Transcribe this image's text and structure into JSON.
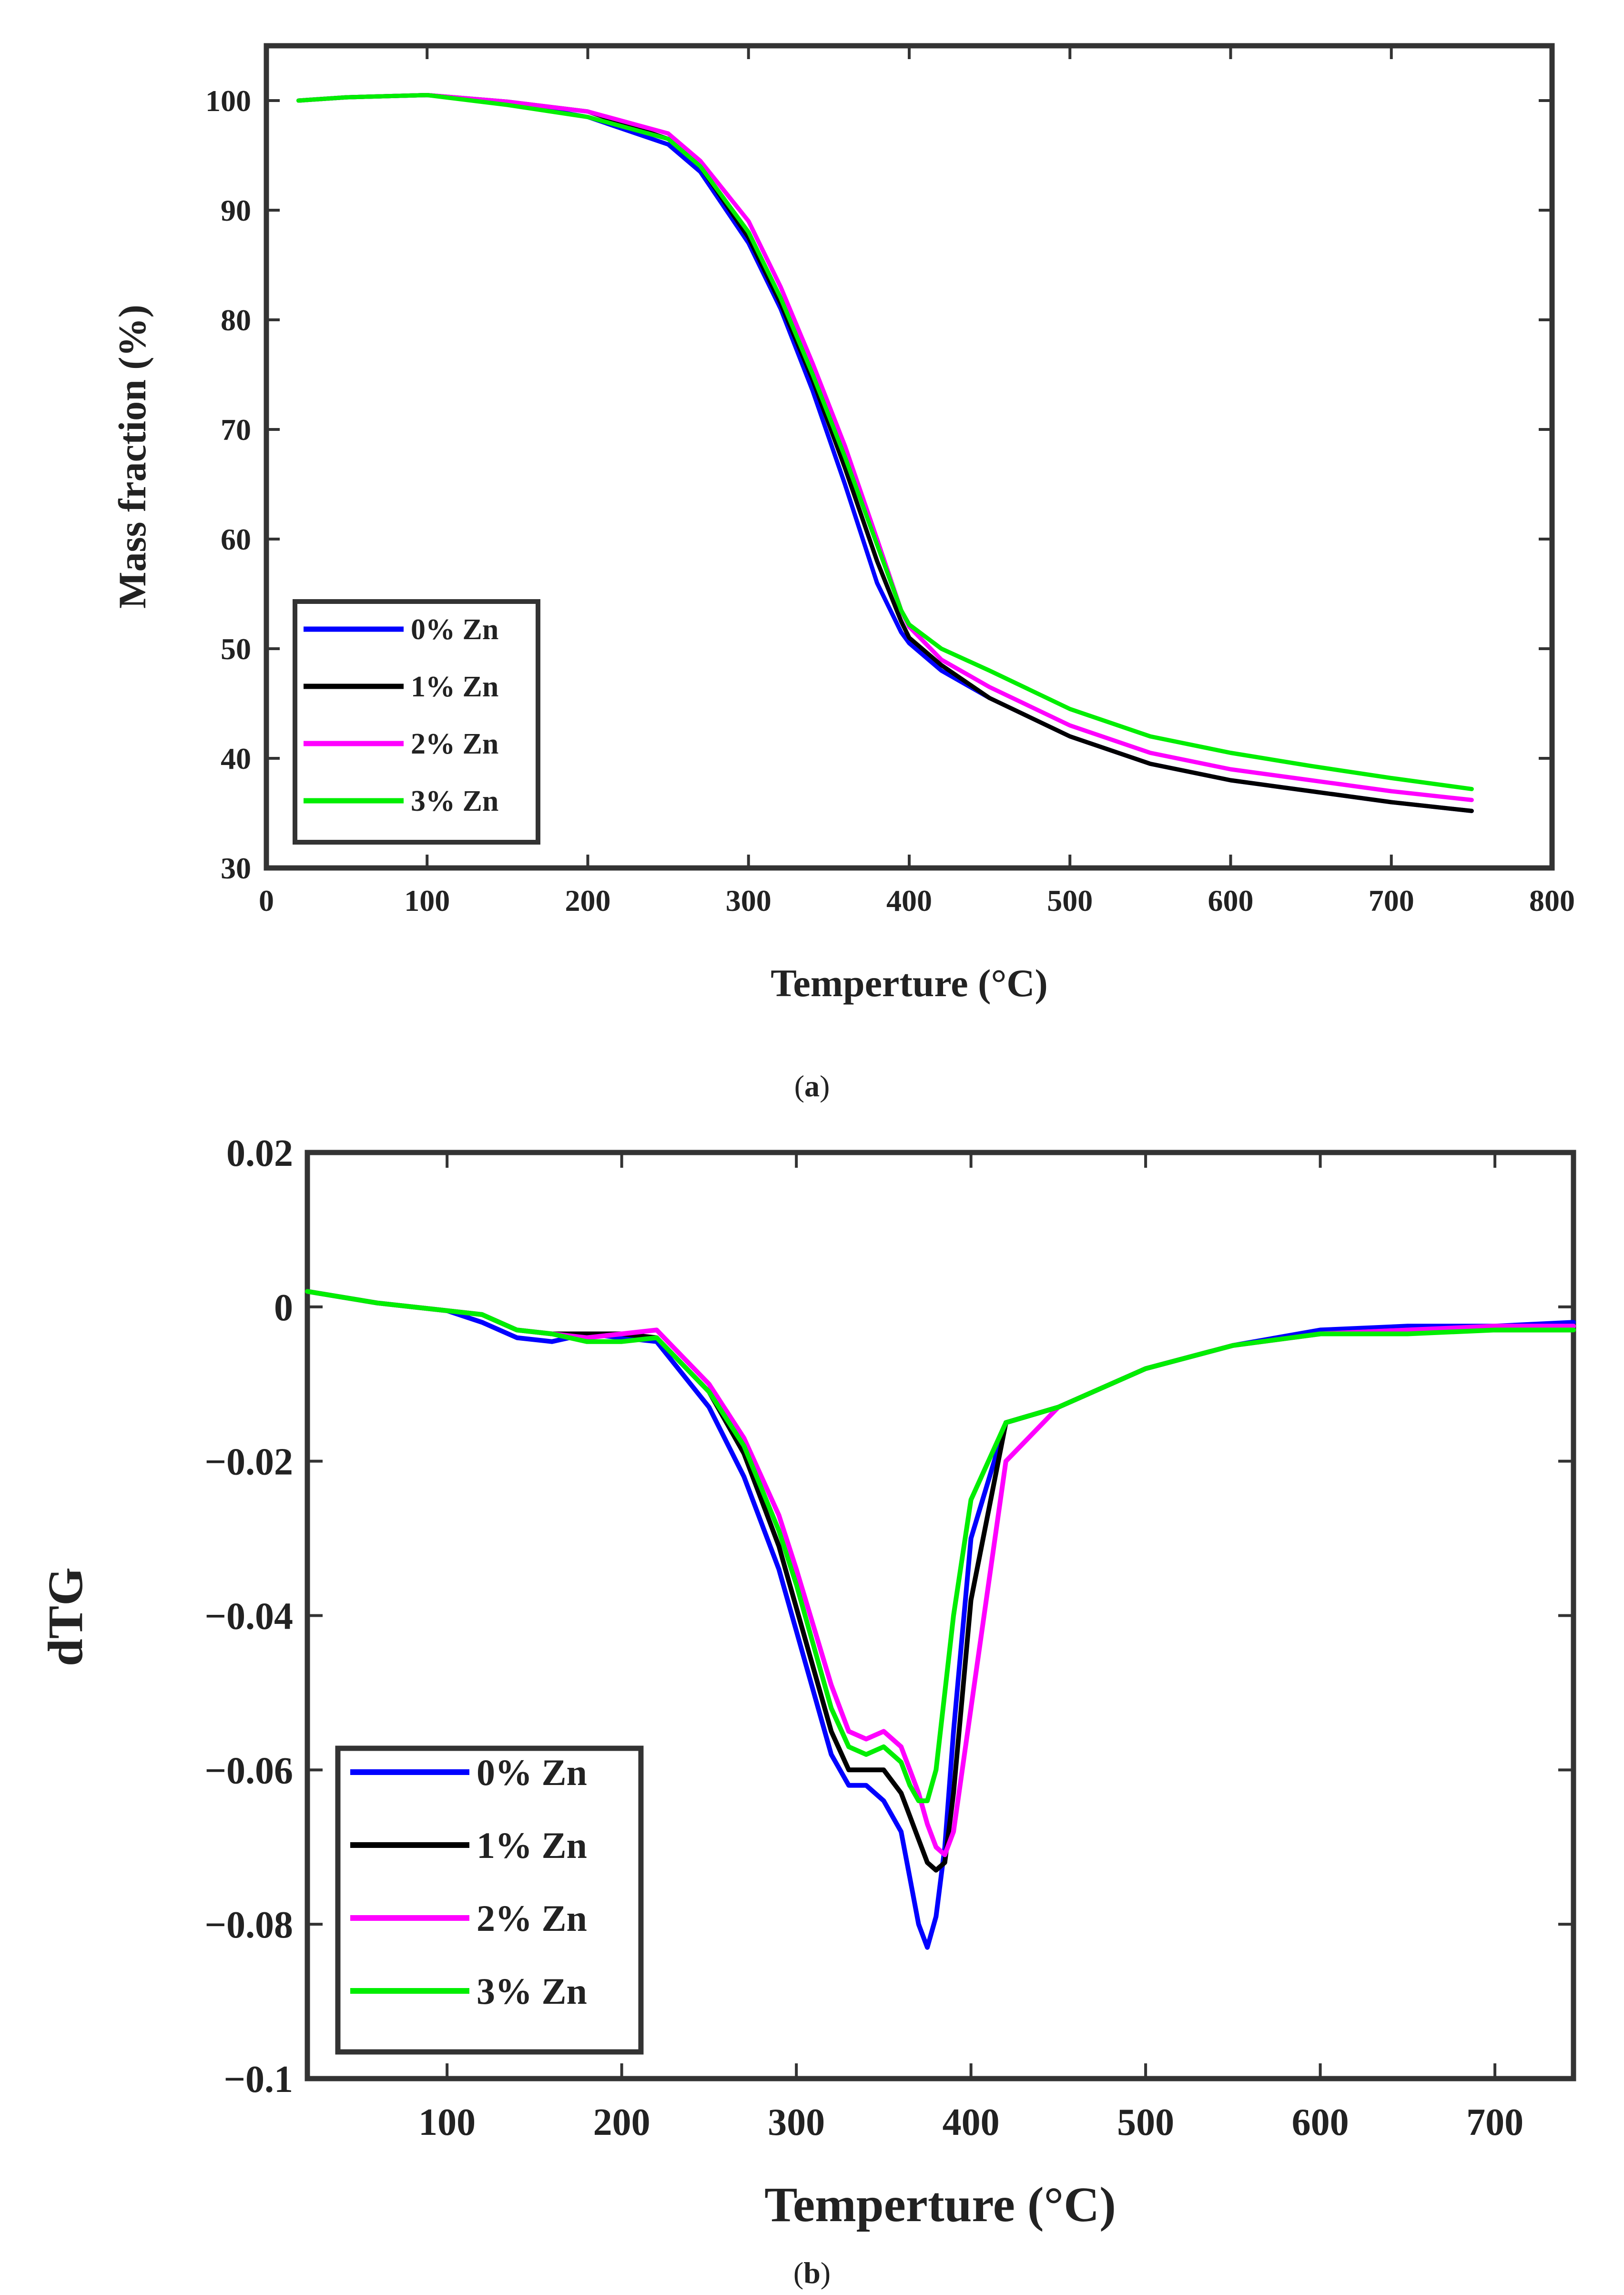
{
  "chart_data": [
    {
      "type": "line",
      "panel_label": "a",
      "xlabel": "Temperture (°C)",
      "ylabel": "Mass fraction (%)",
      "xlim": [
        0,
        800
      ],
      "ylim": [
        30,
        105
      ],
      "xticks": [
        0,
        100,
        200,
        300,
        400,
        500,
        600,
        700,
        800
      ],
      "yticks": [
        30,
        40,
        50,
        60,
        70,
        80,
        90,
        100
      ],
      "legend_position": "bottom-left",
      "series": [
        {
          "name": "0% Zn",
          "color": "#0000ff",
          "x": [
            20,
            50,
            100,
            150,
            200,
            250,
            270,
            300,
            320,
            340,
            360,
            380,
            395,
            400,
            420,
            450,
            500,
            550,
            600,
            650,
            700,
            750
          ],
          "y": [
            100,
            100.3,
            100.5,
            99.8,
            98.5,
            96,
            93.5,
            87,
            81,
            73.5,
            65,
            56,
            51.5,
            50.5,
            48,
            45.5,
            42,
            39.5,
            38,
            37,
            36,
            35.2
          ]
        },
        {
          "name": "1% Zn",
          "color": "#000000",
          "x": [
            20,
            50,
            100,
            150,
            200,
            250,
            270,
            300,
            320,
            340,
            360,
            380,
            395,
            400,
            420,
            450,
            500,
            550,
            600,
            650,
            700,
            750
          ],
          "y": [
            100,
            100.3,
            100.5,
            99.9,
            99,
            96.5,
            94,
            87.5,
            81.5,
            74.5,
            66.5,
            58,
            52.5,
            51,
            48.5,
            45.5,
            42,
            39.5,
            38,
            37,
            36,
            35.2
          ]
        },
        {
          "name": "2% Zn",
          "color": "#ff00ff",
          "x": [
            20,
            50,
            100,
            150,
            200,
            250,
            270,
            300,
            320,
            340,
            360,
            380,
            395,
            400,
            420,
            450,
            500,
            550,
            600,
            650,
            700,
            750
          ],
          "y": [
            100,
            100.3,
            100.5,
            99.9,
            99,
            97,
            94.5,
            89,
            83,
            76,
            68.5,
            60,
            53.5,
            52,
            49,
            46.5,
            43,
            40.5,
            39,
            38,
            37,
            36.2
          ]
        },
        {
          "name": "3% Zn",
          "color": "#00ee00",
          "x": [
            20,
            50,
            100,
            150,
            200,
            250,
            270,
            300,
            320,
            340,
            360,
            380,
            395,
            400,
            420,
            450,
            500,
            550,
            600,
            650,
            700,
            750
          ],
          "y": [
            100,
            100.3,
            100.5,
            99.6,
            98.5,
            96.5,
            94,
            88,
            82,
            75,
            67.5,
            59.5,
            53.5,
            52.2,
            50,
            48,
            44.5,
            42,
            40.5,
            39.3,
            38.2,
            37.2
          ]
        }
      ]
    },
    {
      "type": "line",
      "panel_label": "b",
      "xlabel": "Temperture (°C)",
      "ylabel": "dTG",
      "xlim": [
        20,
        745
      ],
      "ylim": [
        -0.1,
        0.02
      ],
      "xticks": [
        100,
        200,
        300,
        400,
        500,
        600,
        700
      ],
      "yticks": [
        0.02,
        0,
        -0.02,
        -0.04,
        -0.06,
        -0.08,
        -0.1
      ],
      "ytick_labels": [
        "0.02",
        "0",
        "−0.02",
        "−0.04",
        "−0.06",
        "−0.08",
        "−0.1"
      ],
      "legend_position": "bottom-left",
      "series": [
        {
          "name": "0% Zn",
          "color": "#0000ff",
          "x": [
            20,
            60,
            100,
            120,
            140,
            160,
            180,
            200,
            220,
            250,
            270,
            290,
            300,
            320,
            330,
            340,
            350,
            360,
            365,
            370,
            375,
            380,
            385,
            390,
            400,
            420,
            450,
            500,
            550,
            600,
            650,
            700,
            745
          ],
          "y": [
            0.002,
            0.0005,
            -0.0005,
            -0.002,
            -0.004,
            -0.0045,
            -0.0035,
            -0.004,
            -0.0045,
            -0.013,
            -0.022,
            -0.034,
            -0.042,
            -0.058,
            -0.062,
            -0.062,
            -0.064,
            -0.068,
            -0.074,
            -0.08,
            -0.083,
            -0.079,
            -0.07,
            -0.055,
            -0.03,
            -0.015,
            -0.013,
            -0.008,
            -0.005,
            -0.003,
            -0.0025,
            -0.0025,
            -0.002
          ]
        },
        {
          "name": "1% Zn",
          "color": "#000000",
          "x": [
            20,
            60,
            100,
            120,
            140,
            160,
            180,
            200,
            220,
            250,
            270,
            290,
            300,
            320,
            330,
            340,
            350,
            360,
            365,
            370,
            375,
            380,
            385,
            390,
            400,
            420,
            450,
            500,
            550,
            600,
            650,
            700,
            745
          ],
          "y": [
            0.002,
            0.0005,
            -0.0005,
            -0.001,
            -0.003,
            -0.0035,
            -0.0035,
            -0.0035,
            -0.004,
            -0.011,
            -0.019,
            -0.031,
            -0.039,
            -0.055,
            -0.06,
            -0.06,
            -0.06,
            -0.063,
            -0.066,
            -0.069,
            -0.072,
            -0.073,
            -0.072,
            -0.063,
            -0.038,
            -0.015,
            -0.013,
            -0.008,
            -0.005,
            -0.0035,
            -0.003,
            -0.003,
            -0.003
          ]
        },
        {
          "name": "2% Zn",
          "color": "#ff00ff",
          "x": [
            20,
            60,
            100,
            120,
            140,
            160,
            180,
            200,
            220,
            250,
            270,
            290,
            300,
            320,
            330,
            340,
            350,
            360,
            365,
            370,
            375,
            380,
            385,
            390,
            400,
            420,
            450,
            500,
            550,
            600,
            650,
            700,
            745
          ],
          "y": [
            0.002,
            0.0005,
            -0.0005,
            -0.001,
            -0.003,
            -0.0035,
            -0.004,
            -0.0035,
            -0.003,
            -0.01,
            -0.017,
            -0.027,
            -0.034,
            -0.049,
            -0.055,
            -0.056,
            -0.055,
            -0.057,
            -0.06,
            -0.063,
            -0.067,
            -0.07,
            -0.071,
            -0.068,
            -0.052,
            -0.02,
            -0.013,
            -0.008,
            -0.005,
            -0.0035,
            -0.003,
            -0.0025,
            -0.0025
          ]
        },
        {
          "name": "3% Zn",
          "color": "#00ee00",
          "x": [
            20,
            60,
            100,
            120,
            140,
            160,
            180,
            200,
            220,
            250,
            270,
            290,
            300,
            320,
            330,
            340,
            350,
            360,
            365,
            370,
            375,
            380,
            385,
            390,
            400,
            420,
            450,
            500,
            550,
            600,
            650,
            700,
            745
          ],
          "y": [
            0.002,
            0.0005,
            -0.0005,
            -0.001,
            -0.003,
            -0.0035,
            -0.0045,
            -0.0045,
            -0.004,
            -0.011,
            -0.018,
            -0.029,
            -0.036,
            -0.052,
            -0.057,
            -0.058,
            -0.057,
            -0.059,
            -0.062,
            -0.064,
            -0.064,
            -0.06,
            -0.05,
            -0.04,
            -0.025,
            -0.015,
            -0.013,
            -0.008,
            -0.005,
            -0.0035,
            -0.0035,
            -0.003,
            -0.003
          ]
        }
      ]
    }
  ]
}
